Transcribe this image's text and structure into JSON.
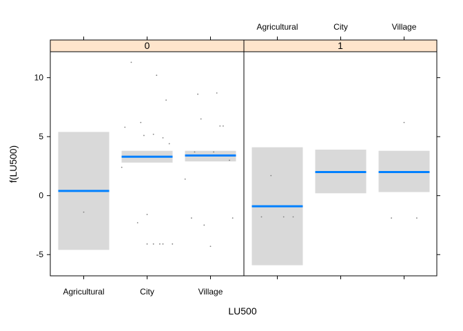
{
  "chart_data": {
    "type": "scatter",
    "xlabel": "LU500",
    "ylabel": "f(LU500)",
    "ylim": [
      -6.8,
      12.2
    ],
    "y_ticks": [
      -5,
      0,
      5,
      10
    ],
    "categories": [
      "Agricultural",
      "City",
      "Village"
    ],
    "grid": false,
    "colors": {
      "strip_fill": "#ffe5cc",
      "band_fill": "#d9d9d9",
      "fit_line": "#0080ff",
      "points": "#7f7f7f",
      "frame": "#000000"
    },
    "panels": [
      {
        "label": "0",
        "groups": [
          {
            "category": "Agricultural",
            "fit": 0.4,
            "lower": -4.6,
            "upper": 5.4,
            "points": [
              [
                0.0,
                -1.4
              ]
            ]
          },
          {
            "category": "City",
            "fit": 3.3,
            "lower": 2.8,
            "upper": 3.8,
            "points": [
              [
                -0.4,
                2.4
              ],
              [
                -0.35,
                5.8
              ],
              [
                -0.25,
                11.3
              ],
              [
                -0.15,
                -2.3
              ],
              [
                -0.1,
                6.2
              ],
              [
                -0.05,
                5.1
              ],
              [
                0.0,
                -4.1
              ],
              [
                0.0,
                -1.6
              ],
              [
                0.1,
                5.2
              ],
              [
                0.1,
                -4.1
              ],
              [
                0.15,
                10.2
              ],
              [
                0.2,
                -4.1
              ],
              [
                0.25,
                4.9
              ],
              [
                0.25,
                -4.1
              ],
              [
                0.3,
                8.1
              ],
              [
                0.35,
                4.4
              ],
              [
                0.4,
                -4.1
              ]
            ]
          },
          {
            "category": "Village",
            "fit": 3.4,
            "lower": 2.9,
            "upper": 3.8,
            "points": [
              [
                -0.4,
                1.4
              ],
              [
                -0.3,
                -1.9
              ],
              [
                -0.25,
                3.7
              ],
              [
                -0.2,
                8.6
              ],
              [
                -0.15,
                6.5
              ],
              [
                -0.1,
                -2.5
              ],
              [
                0.0,
                -4.3
              ],
              [
                0.05,
                3.7
              ],
              [
                0.1,
                8.7
              ],
              [
                0.15,
                5.9
              ],
              [
                0.2,
                5.9
              ],
              [
                0.3,
                3.0
              ],
              [
                0.35,
                -1.9
              ]
            ]
          }
        ]
      },
      {
        "label": "1",
        "groups": [
          {
            "category": "Agricultural",
            "fit": -0.9,
            "lower": -5.9,
            "upper": 4.1,
            "points": [
              [
                -0.25,
                -1.8
              ],
              [
                -0.1,
                1.7
              ],
              [
                0.1,
                -1.8
              ],
              [
                0.25,
                -1.8
              ]
            ]
          },
          {
            "category": "City",
            "fit": 2.0,
            "lower": 0.2,
            "upper": 3.9,
            "points": []
          },
          {
            "category": "Village",
            "fit": 2.0,
            "lower": 0.3,
            "upper": 3.8,
            "points": [
              [
                -0.2,
                -1.9
              ],
              [
                0.0,
                6.2
              ],
              [
                0.2,
                -1.9
              ]
            ]
          }
        ]
      }
    ]
  }
}
